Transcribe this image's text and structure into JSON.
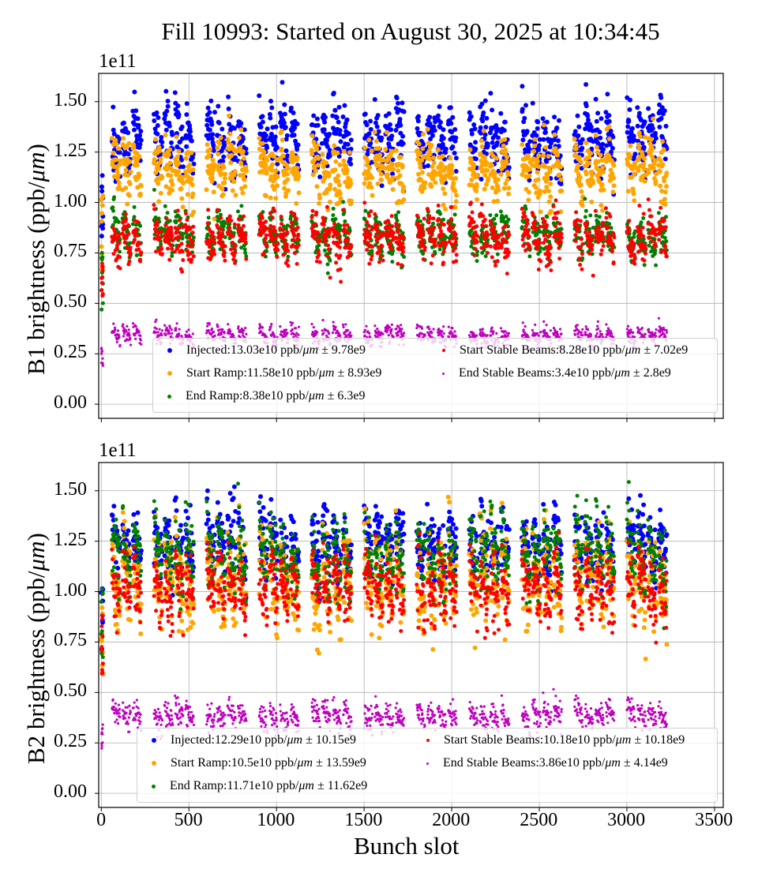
{
  "title": "Fill 10993: Started on August 30, 2025 at 10:34:45",
  "chart_data": [
    {
      "type": "scatter",
      "panel": "B1",
      "ylabel_prefix": "B1 brightness (ppb/",
      "ylabel_unit": "μm",
      "ylabel_suffix": ")",
      "offset_text": "1e11",
      "xlabel": "",
      "xlim": [
        -15,
        3550
      ],
      "ylim": [
        -0.07,
        1.64
      ],
      "y_scale": 100000000000.0,
      "yticks": [
        "0.00",
        "0.25",
        "0.50",
        "0.75",
        "1.00",
        "1.25",
        "1.50"
      ],
      "ytick_values": [
        0,
        0.25,
        0.5,
        0.75,
        1.0,
        1.25,
        1.5
      ],
      "xtick_values": [
        0,
        500,
        1000,
        1500,
        2000,
        2500,
        3000,
        3500
      ],
      "xticks_labeled": false,
      "grid": true,
      "legend_position": "lower-center",
      "slot_range": [
        0,
        3240
      ],
      "series": [
        {
          "name": "Injected",
          "label": "Injected:13.03e10 ppb/",
          "stat": " ± 9.78e9",
          "color": "#0000ff",
          "mean": 1.303,
          "sigma": 0.0978,
          "marker": "large"
        },
        {
          "name": "Start Ramp",
          "label": "Start Ramp:11.58e10 ppb/",
          "stat": " ± 8.93e9",
          "color": "#ffa500",
          "mean": 1.158,
          "sigma": 0.0893,
          "marker": "large"
        },
        {
          "name": "End Ramp",
          "label": "End Ramp:8.38e10 ppb/",
          "stat": " ± 6.3e9",
          "color": "#008000",
          "mean": 0.838,
          "sigma": 0.063,
          "marker": "medium"
        },
        {
          "name": "Start Stable Beams",
          "label": "Start Stable Beams:8.28e10 ppb/",
          "stat": " ± 7.02e9",
          "color": "#ff0000",
          "mean": 0.828,
          "sigma": 0.0702,
          "marker": "medium"
        },
        {
          "name": "End Stable Beams",
          "label": "End Stable Beams:3.4e10 ppb/",
          "stat": " ± 2.8e9",
          "color": "#bf00bf",
          "mean": 0.34,
          "sigma": 0.028,
          "marker": "small"
        }
      ]
    },
    {
      "type": "scatter",
      "panel": "B2",
      "ylabel_prefix": "B2 brightness (ppb/",
      "ylabel_unit": "μm",
      "ylabel_suffix": ")",
      "offset_text": "1e11",
      "xlabel": "Bunch slot",
      "xlim": [
        -15,
        3550
      ],
      "ylim": [
        -0.07,
        1.64
      ],
      "y_scale": 100000000000.0,
      "yticks": [
        "0.00",
        "0.25",
        "0.50",
        "0.75",
        "1.00",
        "1.25",
        "1.50"
      ],
      "ytick_values": [
        0,
        0.25,
        0.5,
        0.75,
        1.0,
        1.25,
        1.5
      ],
      "xticks": [
        "0",
        "500",
        "1000",
        "1500",
        "2000",
        "2500",
        "3000",
        "3500"
      ],
      "xtick_values": [
        0,
        500,
        1000,
        1500,
        2000,
        2500,
        3000,
        3500
      ],
      "xticks_labeled": true,
      "grid": true,
      "legend_position": "lower-center",
      "slot_range": [
        0,
        3240
      ],
      "series": [
        {
          "name": "Injected",
          "label": "Injected:12.29e10 ppb/",
          "stat": " ± 10.15e9",
          "color": "#0000ff",
          "mean": 1.229,
          "sigma": 0.1015,
          "marker": "large"
        },
        {
          "name": "Start Ramp",
          "label": "Start Ramp:10.5e10 ppb/",
          "stat": " ± 13.59e9",
          "color": "#ffa500",
          "mean": 1.05,
          "sigma": 0.1359,
          "marker": "large"
        },
        {
          "name": "End Ramp",
          "label": "End Ramp:11.71e10 ppb/",
          "stat": " ± 11.62e9",
          "color": "#008000",
          "mean": 1.171,
          "sigma": 0.1162,
          "marker": "medium"
        },
        {
          "name": "Start Stable Beams",
          "label": "Start Stable Beams:10.18e10 ppb/",
          "stat": " ± 10.18e9",
          "color": "#ff0000",
          "mean": 1.018,
          "sigma": 0.1018,
          "marker": "medium"
        },
        {
          "name": "End Stable Beams",
          "label": "End Stable Beams:3.86e10 ppb/",
          "stat": " ± 4.14e9",
          "color": "#bf00bf",
          "mean": 0.386,
          "sigma": 0.0414,
          "marker": "small"
        }
      ]
    }
  ]
}
